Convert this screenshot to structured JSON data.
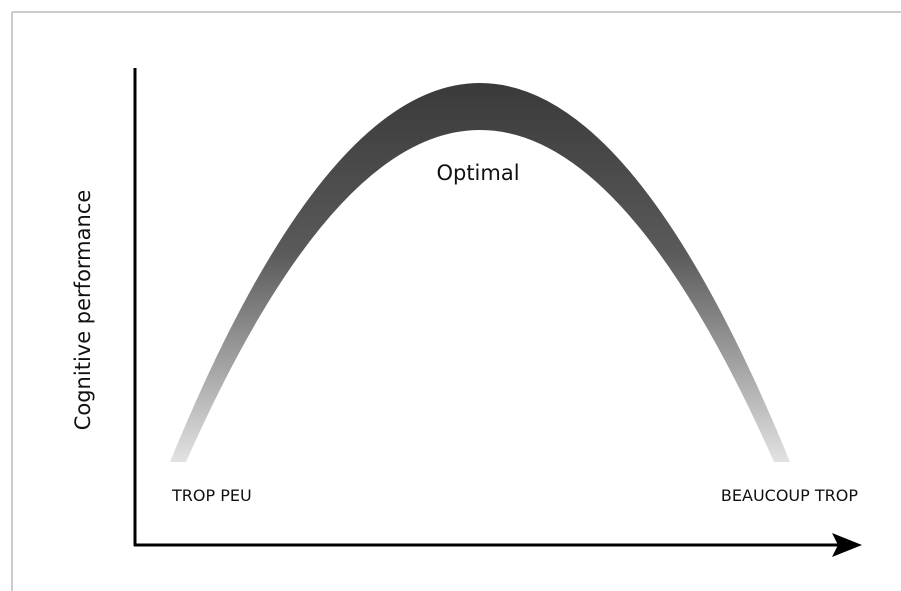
{
  "y_axis_label": "Cognitive performance",
  "peak_label": "Optimal",
  "left_label": "TROP PEU",
  "right_label": "BEAUCOUP TROP"
}
